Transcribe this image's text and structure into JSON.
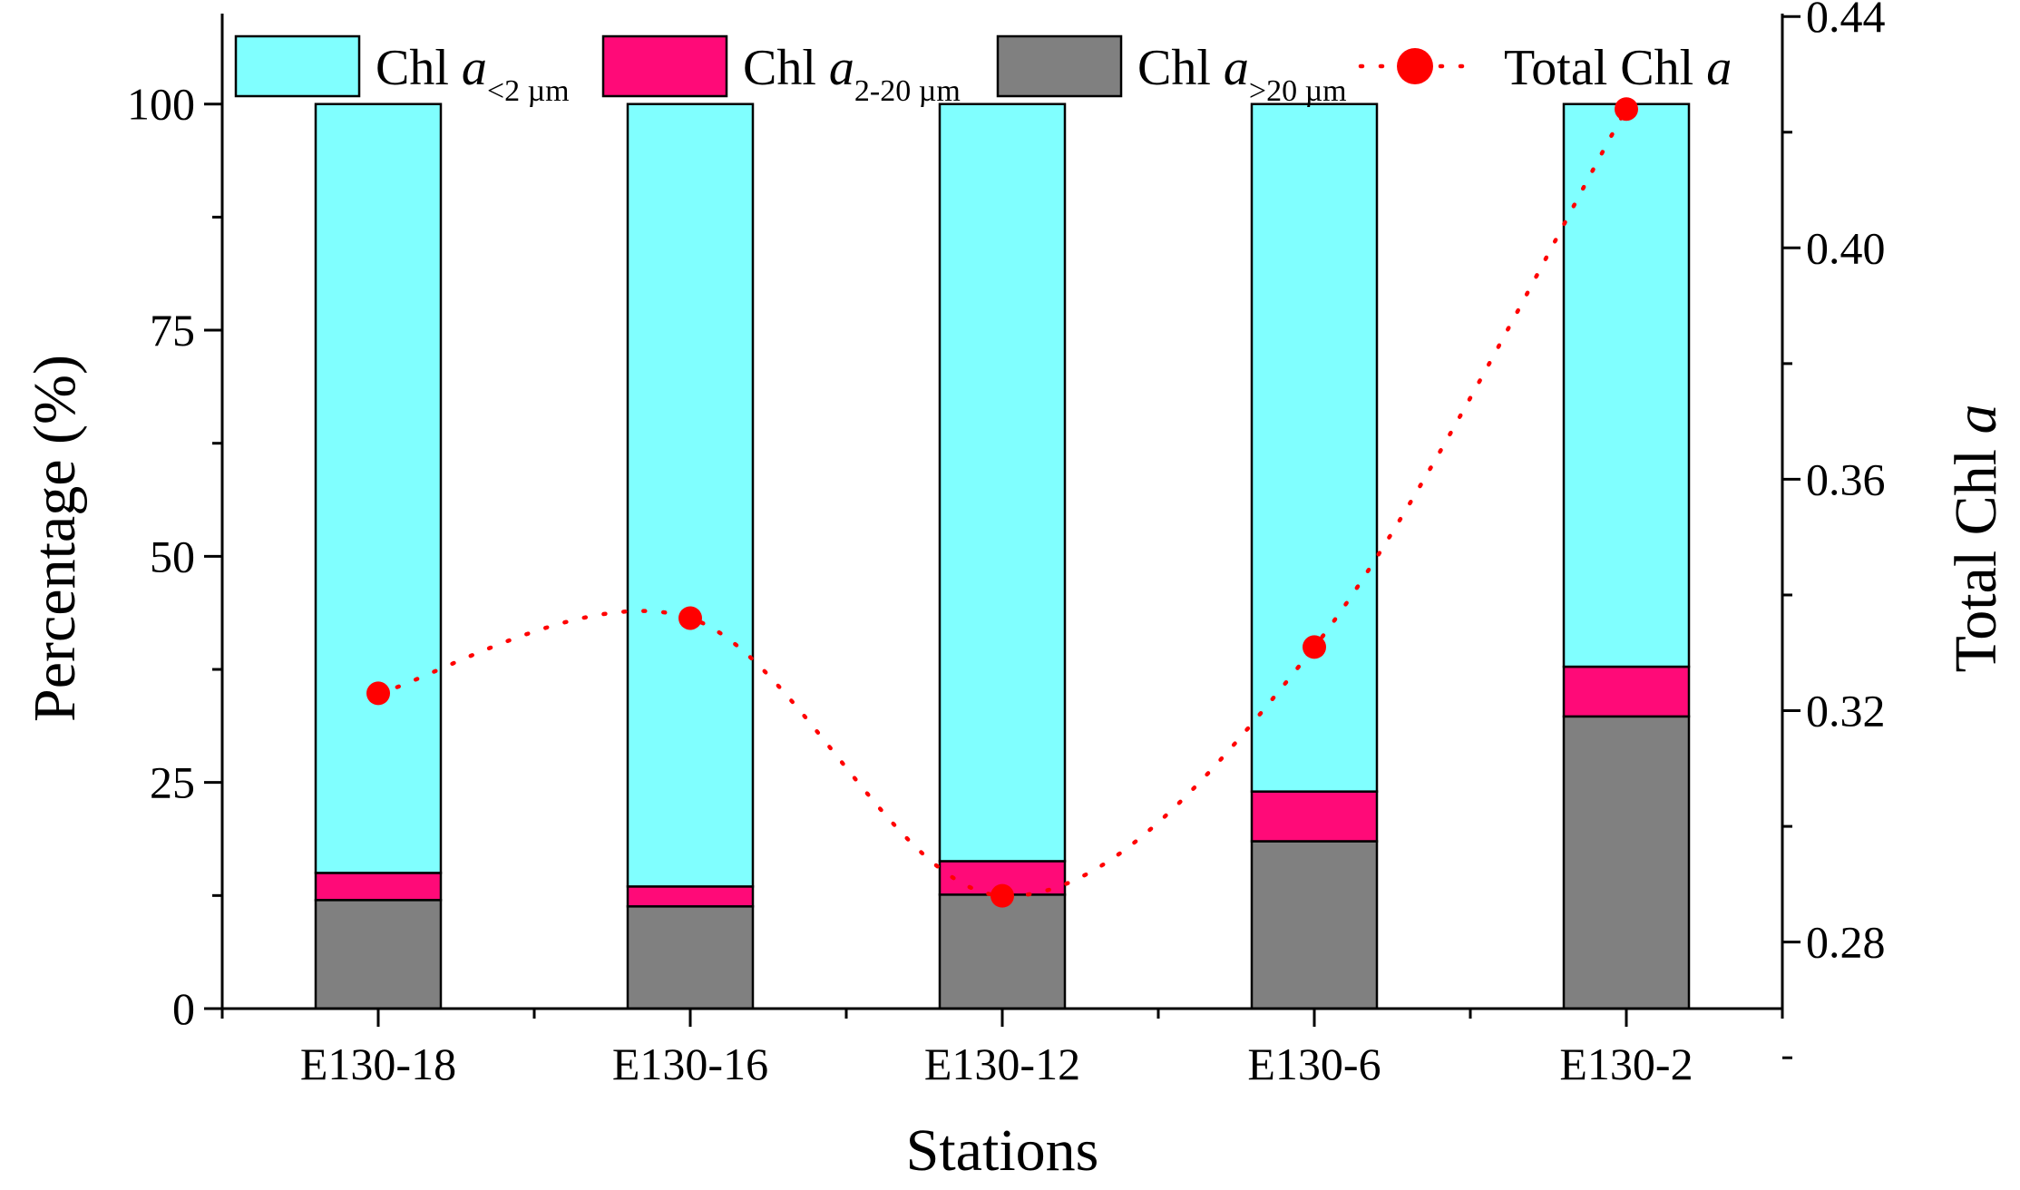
{
  "chart_data": {
    "type": "bar",
    "stacked": true,
    "categories": [
      "E130-18",
      "E130-16",
      "E130-12",
      "E130-6",
      "E130-2"
    ],
    "xlabel": "Stations",
    "ylabel": "Percentage (%)",
    "ylim": [
      0,
      110
    ],
    "yticks": [
      "0",
      "25",
      "50",
      "75",
      "100"
    ],
    "y2label": "Total Chl a",
    "y2label_parts": {
      "main": "Total Chl ",
      "italic": "a"
    },
    "y2lim": [
      0.2685,
      0.4405
    ],
    "y2ticks": [
      "0.28",
      "0.32",
      "0.36",
      "0.40",
      "0.44"
    ],
    "series": [
      {
        "name": "Chl a >20 µm",
        "label_main": "Chl ",
        "label_italic": "a",
        "label_sub": ">20 µm",
        "color": "#808080",
        "values": [
          12.0,
          11.3,
          12.6,
          18.5,
          32.3
        ]
      },
      {
        "name": "Chl a 2-20 µm",
        "label_main": "Chl ",
        "label_italic": "a",
        "label_sub": "2-20 µm",
        "color": "#ff0a78",
        "values": [
          3.0,
          2.2,
          3.7,
          5.5,
          5.5
        ]
      },
      {
        "name": "Chl a <2 µm",
        "label_main": "Chl ",
        "label_italic": "a",
        "label_sub": "<2 µm",
        "color": "#80ffff",
        "values": [
          85.0,
          86.5,
          83.7,
          76.0,
          62.2
        ]
      }
    ],
    "line_series": {
      "name": "Total Chl a",
      "label_main": "Total Chl ",
      "label_italic": "a",
      "axis": "right",
      "color": "#ff0000",
      "style": "dotted",
      "values": [
        0.323,
        0.336,
        0.288,
        0.331,
        0.424
      ]
    },
    "legend_position": "top",
    "grid": false
  }
}
